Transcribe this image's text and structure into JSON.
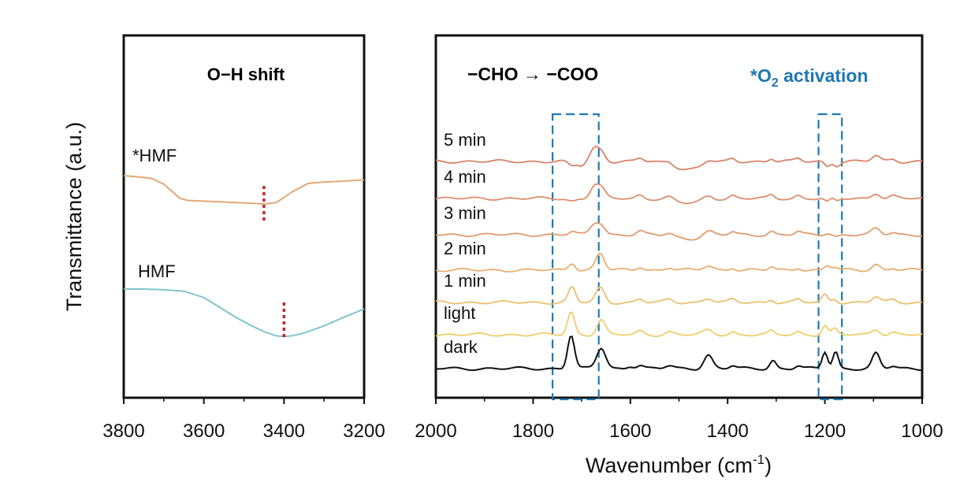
{
  "chart_data": [
    {
      "type": "line",
      "panel": "left",
      "title": "",
      "xlabel": "",
      "ylabel": "Transmittance (a.u.)",
      "xlim": [
        3800,
        3200
      ],
      "x_reversed": true,
      "x_ticks": [
        3800,
        3600,
        3400,
        3200
      ],
      "annotation": {
        "text": "O−H shift",
        "color": "#d42020"
      },
      "series": [
        {
          "name": "*HMF",
          "color": "#e3a878",
          "marker_x": 3450,
          "x": [
            3800,
            3760,
            3730,
            3700,
            3680,
            3660,
            3640,
            3600,
            3560,
            3520,
            3480,
            3450,
            3420,
            3400,
            3380,
            3360,
            3340,
            3300,
            3260,
            3230,
            3200
          ],
          "y": [
            0.0,
            -0.1,
            -0.2,
            -0.6,
            -1.1,
            -1.6,
            -1.75,
            -1.8,
            -1.85,
            -1.9,
            -1.95,
            -2.0,
            -1.9,
            -1.55,
            -1.15,
            -0.85,
            -0.55,
            -0.45,
            -0.4,
            -0.35,
            -0.3
          ]
        },
        {
          "name": "HMF",
          "color": "#7fc5cd",
          "marker_x": 3400,
          "x": [
            3800,
            3750,
            3700,
            3650,
            3600,
            3560,
            3520,
            3480,
            3450,
            3420,
            3400,
            3380,
            3350,
            3320,
            3300,
            3260,
            3230,
            3200
          ],
          "y": [
            0.0,
            0.0,
            -0.05,
            -0.15,
            -0.6,
            -1.3,
            -2.0,
            -2.6,
            -3.0,
            -3.3,
            -3.35,
            -3.3,
            -3.1,
            -2.8,
            -2.6,
            -2.1,
            -1.75,
            -1.4
          ]
        }
      ]
    },
    {
      "type": "line",
      "panel": "right",
      "title": "",
      "xlabel": "Wavenumber (cm",
      "xlabel_sup": "-1",
      "xlabel_end": ")",
      "ylabel": "",
      "xlim": [
        2000,
        1000
      ],
      "x_reversed": true,
      "x_ticks": [
        2000,
        1800,
        1600,
        1400,
        1200,
        1000
      ],
      "annotations": [
        {
          "text": "−CHO → −COO",
          "color": "#1f78b4",
          "box_x": [
            1760,
            1665
          ]
        },
        {
          "text": "*O",
          "sub": "2",
          "text_end": " activation",
          "color": "#1f78b4",
          "box_x": [
            1213,
            1165
          ]
        }
      ],
      "series": [
        {
          "name": "5 min",
          "color": "#d9826a"
        },
        {
          "name": "4 min",
          "color": "#de8e6c"
        },
        {
          "name": "3 min",
          "color": "#e29a6f"
        },
        {
          "name": "2 min",
          "color": "#e7ae70"
        },
        {
          "name": "1 min",
          "color": "#ebbf6e"
        },
        {
          "name": "light",
          "color": "#efcd68"
        },
        {
          "name": "dark",
          "color": "#111111"
        }
      ]
    }
  ]
}
